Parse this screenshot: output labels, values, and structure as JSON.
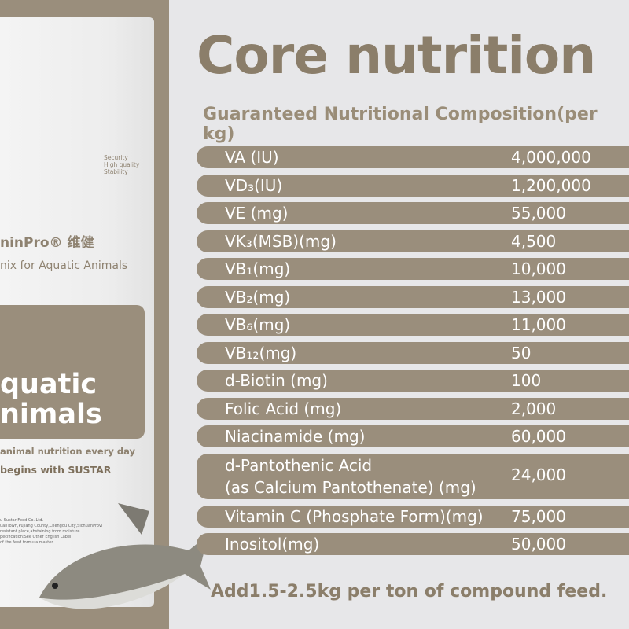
{
  "bag": {
    "tags": [
      "Security",
      "High quality",
      "Stability"
    ],
    "brand": "ninPro® 维健",
    "subtitle": "nix for Aquatic Animals",
    "big1": "quatic",
    "big2": "nimals",
    "slogan1": "animal nutrition every day",
    "slogan2": "begins with SUSTAR",
    "fine": [
      "u Sustar Feed Co.,Ltd.",
      "uanTown,Pujiang County,Chengdu City,SichuanProvi",
      "resistant place,abstaining from moisture.",
      "pecification:See Other English Label.",
      "of the feed formula master."
    ]
  },
  "title": "Core nutrition",
  "subtitle": "Guaranteed Nutritional Composition(per kg)",
  "rows": [
    {
      "label": "VA (IU)",
      "value": "4,000,000"
    },
    {
      "label": "VD₃(IU)",
      "value": "1,200,000"
    },
    {
      "label": "VE (mg)",
      "value": "55,000"
    },
    {
      "label": "VK₃(MSB)(mg)",
      "value": "4,500"
    },
    {
      "label": "VB₁(mg)",
      "value": "10,000"
    },
    {
      "label": "VB₂(mg)",
      "value": "13,000"
    },
    {
      "label": "VB₆(mg)",
      "value": "11,000"
    },
    {
      "label": "VB₁₂(mg)",
      "value": "50"
    },
    {
      "label": "d-Biotin (mg)",
      "value": "100"
    },
    {
      "label": "Folic Acid (mg)",
      "value": "2,000"
    },
    {
      "label": "Niacinamide (mg)",
      "value": "60,000"
    },
    {
      "label": "d-Pantothenic Acid",
      "label2": "(as Calcium Pantothenate) (mg)",
      "value": "24,000"
    },
    {
      "label": "Vitamin C (Phosphate Form)(mg)",
      "value": "75,000"
    },
    {
      "label": "Inositol(mg)",
      "value": "50,000"
    }
  ],
  "footer": "Add1.5-2.5kg per ton of compound feed.",
  "colors": {
    "brown": "#9a8e7c",
    "title": "#8b7e6a",
    "background": "#e7e7e9"
  }
}
